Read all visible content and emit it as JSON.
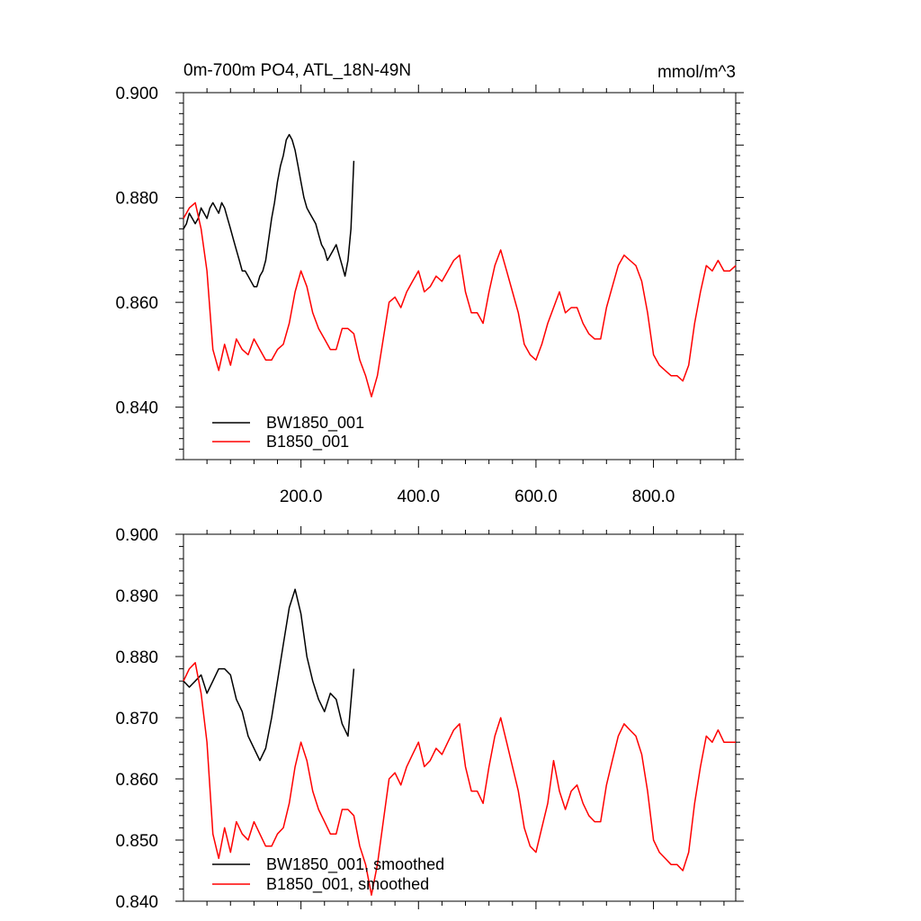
{
  "colors": {
    "bw": "#000000",
    "b": "#ff0000"
  },
  "chart_data": [
    {
      "type": "line",
      "title": "0m-700m PO4, ATL_18N-49N",
      "units": "mmol/m^3",
      "xlim": [
        0,
        940
      ],
      "ylim": [
        0.83,
        0.9
      ],
      "yticks": [
        "0.900",
        "0.880",
        "0.860",
        "0.840"
      ],
      "xticks": [
        "200.0",
        "400.0",
        "600.0",
        "800.0"
      ],
      "series": [
        {
          "name": "BW1850_001",
          "color": "#000000",
          "x": [
            0,
            5,
            10,
            15,
            20,
            25,
            30,
            35,
            40,
            45,
            50,
            55,
            60,
            65,
            70,
            75,
            80,
            85,
            90,
            95,
            100,
            105,
            110,
            115,
            120,
            125,
            130,
            135,
            140,
            145,
            150,
            155,
            160,
            165,
            170,
            175,
            180,
            185,
            190,
            195,
            200,
            205,
            210,
            215,
            220,
            225,
            230,
            235,
            240,
            245,
            250,
            255,
            260,
            265,
            270,
            275,
            280,
            285,
            290
          ],
          "y": [
            0.874,
            0.875,
            0.877,
            0.876,
            0.875,
            0.876,
            0.878,
            0.877,
            0.876,
            0.878,
            0.879,
            0.878,
            0.877,
            0.879,
            0.878,
            0.876,
            0.874,
            0.872,
            0.87,
            0.868,
            0.866,
            0.866,
            0.865,
            0.864,
            0.863,
            0.863,
            0.865,
            0.866,
            0.868,
            0.872,
            0.876,
            0.879,
            0.883,
            0.886,
            0.888,
            0.891,
            0.892,
            0.891,
            0.889,
            0.886,
            0.883,
            0.88,
            0.878,
            0.877,
            0.876,
            0.875,
            0.873,
            0.871,
            0.87,
            0.868,
            0.869,
            0.87,
            0.871,
            0.869,
            0.867,
            0.865,
            0.868,
            0.874,
            0.887
          ]
        },
        {
          "name": "B1850_001",
          "color": "#ff0000",
          "x": [
            0,
            10,
            20,
            30,
            40,
            50,
            60,
            70,
            80,
            90,
            100,
            110,
            120,
            130,
            140,
            150,
            160,
            170,
            180,
            190,
            200,
            210,
            220,
            230,
            240,
            250,
            260,
            270,
            280,
            290,
            300,
            310,
            320,
            330,
            340,
            350,
            360,
            370,
            380,
            390,
            400,
            410,
            420,
            430,
            440,
            450,
            460,
            470,
            480,
            490,
            500,
            510,
            520,
            530,
            540,
            550,
            560,
            570,
            580,
            590,
            600,
            610,
            620,
            630,
            640,
            650,
            660,
            670,
            680,
            690,
            700,
            710,
            720,
            730,
            740,
            750,
            760,
            770,
            780,
            790,
            800,
            810,
            820,
            830,
            840,
            850,
            860,
            870,
            880,
            890,
            900,
            910,
            920,
            930,
            940
          ],
          "y": [
            0.876,
            0.878,
            0.879,
            0.874,
            0.866,
            0.851,
            0.847,
            0.852,
            0.848,
            0.853,
            0.851,
            0.85,
            0.853,
            0.851,
            0.849,
            0.849,
            0.851,
            0.852,
            0.856,
            0.862,
            0.866,
            0.863,
            0.858,
            0.855,
            0.853,
            0.851,
            0.851,
            0.855,
            0.855,
            0.854,
            0.849,
            0.846,
            0.842,
            0.846,
            0.853,
            0.86,
            0.861,
            0.859,
            0.862,
            0.864,
            0.866,
            0.862,
            0.863,
            0.865,
            0.864,
            0.866,
            0.868,
            0.869,
            0.862,
            0.858,
            0.858,
            0.856,
            0.862,
            0.867,
            0.87,
            0.866,
            0.862,
            0.858,
            0.852,
            0.85,
            0.849,
            0.852,
            0.856,
            0.859,
            0.862,
            0.858,
            0.859,
            0.859,
            0.856,
            0.854,
            0.853,
            0.853,
            0.859,
            0.863,
            0.867,
            0.869,
            0.868,
            0.867,
            0.864,
            0.858,
            0.85,
            0.848,
            0.847,
            0.846,
            0.846,
            0.845,
            0.848,
            0.856,
            0.862,
            0.867,
            0.866,
            0.868,
            0.866,
            0.866,
            0.867
          ]
        }
      ]
    },
    {
      "type": "line",
      "xlim": [
        0,
        940
      ],
      "ylim": [
        0.84,
        0.9
      ],
      "yticks": [
        "0.900",
        "0.890",
        "0.880",
        "0.870",
        "0.860",
        "0.850",
        "0.840"
      ],
      "series": [
        {
          "name": "BW1850_001, smoothed",
          "color": "#000000",
          "x": [
            0,
            10,
            20,
            30,
            40,
            50,
            60,
            70,
            80,
            90,
            100,
            110,
            120,
            130,
            140,
            150,
            160,
            170,
            180,
            190,
            200,
            210,
            220,
            230,
            240,
            250,
            260,
            270,
            280,
            290
          ],
          "y": [
            0.876,
            0.875,
            0.876,
            0.877,
            0.874,
            0.876,
            0.878,
            0.878,
            0.877,
            0.873,
            0.871,
            0.867,
            0.865,
            0.863,
            0.865,
            0.87,
            0.876,
            0.882,
            0.888,
            0.891,
            0.887,
            0.88,
            0.876,
            0.873,
            0.871,
            0.874,
            0.873,
            0.869,
            0.867,
            0.878
          ]
        },
        {
          "name": "B1850_001, smoothed",
          "color": "#ff0000",
          "x": [
            0,
            10,
            20,
            30,
            40,
            50,
            60,
            70,
            80,
            90,
            100,
            110,
            120,
            130,
            140,
            150,
            160,
            170,
            180,
            190,
            200,
            210,
            220,
            230,
            240,
            250,
            260,
            270,
            280,
            290,
            300,
            310,
            320,
            330,
            340,
            350,
            360,
            370,
            380,
            390,
            400,
            410,
            420,
            430,
            440,
            450,
            460,
            470,
            480,
            490,
            500,
            510,
            520,
            530,
            540,
            550,
            560,
            570,
            580,
            590,
            600,
            610,
            620,
            630,
            640,
            650,
            660,
            670,
            680,
            690,
            700,
            710,
            720,
            730,
            740,
            750,
            760,
            770,
            780,
            790,
            800,
            810,
            820,
            830,
            840,
            850,
            860,
            870,
            880,
            890,
            900,
            910,
            920,
            930,
            940
          ],
          "y": [
            0.876,
            0.878,
            0.879,
            0.874,
            0.866,
            0.851,
            0.847,
            0.852,
            0.848,
            0.853,
            0.851,
            0.85,
            0.853,
            0.851,
            0.849,
            0.849,
            0.851,
            0.852,
            0.856,
            0.862,
            0.866,
            0.863,
            0.858,
            0.855,
            0.853,
            0.851,
            0.851,
            0.855,
            0.855,
            0.854,
            0.849,
            0.846,
            0.841,
            0.846,
            0.853,
            0.86,
            0.861,
            0.859,
            0.862,
            0.864,
            0.866,
            0.862,
            0.863,
            0.865,
            0.864,
            0.866,
            0.868,
            0.869,
            0.862,
            0.858,
            0.858,
            0.856,
            0.862,
            0.867,
            0.87,
            0.866,
            0.862,
            0.858,
            0.852,
            0.849,
            0.848,
            0.852,
            0.856,
            0.863,
            0.858,
            0.855,
            0.858,
            0.859,
            0.856,
            0.854,
            0.853,
            0.853,
            0.859,
            0.863,
            0.867,
            0.869,
            0.868,
            0.867,
            0.864,
            0.858,
            0.85,
            0.848,
            0.847,
            0.846,
            0.846,
            0.845,
            0.848,
            0.856,
            0.862,
            0.867,
            0.866,
            0.868,
            0.866,
            0.866,
            0.866
          ]
        }
      ]
    }
  ]
}
